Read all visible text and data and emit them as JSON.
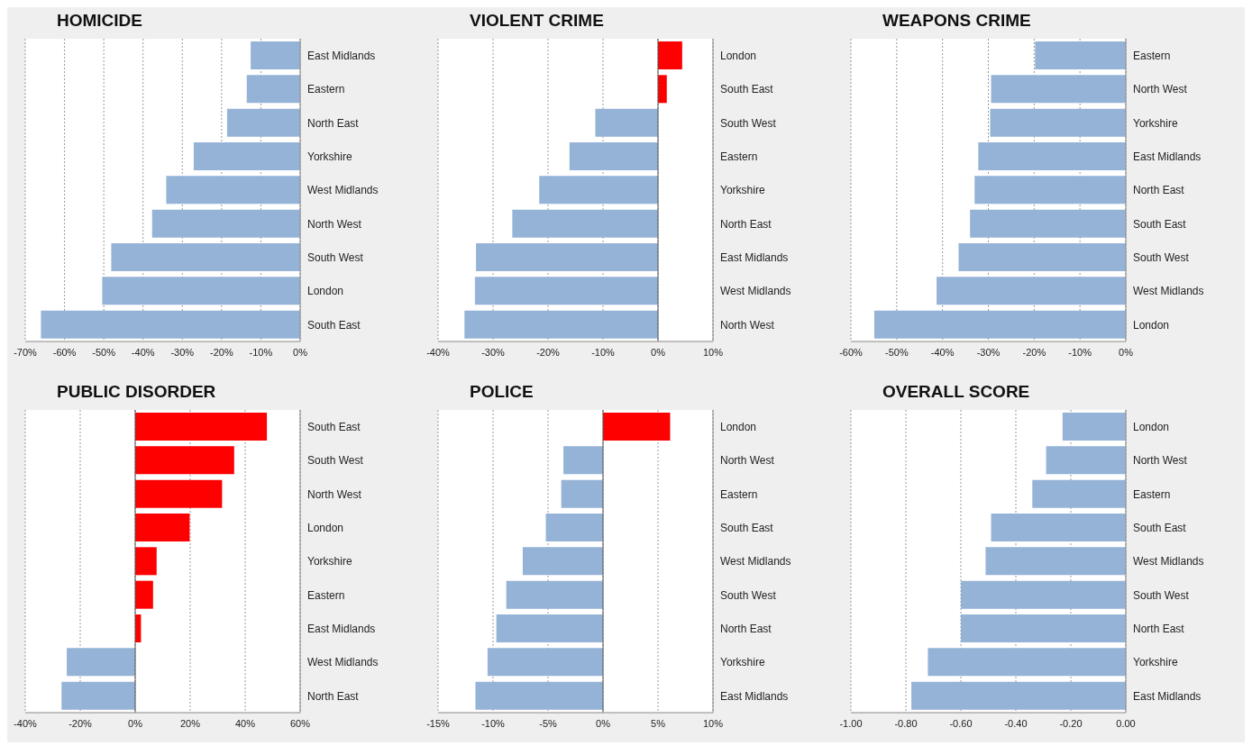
{
  "chart_data": [
    {
      "type": "bar",
      "orientation": "horizontal",
      "title": "HOMICIDE",
      "categories": [
        "East Midlands",
        "Eastern",
        "North East",
        "Yorkshire",
        "West Midlands",
        "North West",
        "South West",
        "London",
        "South East"
      ],
      "values": [
        -12.6,
        -13.6,
        -18.6,
        -27.1,
        -34.1,
        -37.7,
        -48.1,
        -50.4,
        -66.0
      ],
      "colors": [
        "#95b3d7",
        "#95b3d7",
        "#95b3d7",
        "#95b3d7",
        "#95b3d7",
        "#95b3d7",
        "#95b3d7",
        "#95b3d7",
        "#95b3d7"
      ],
      "xlim": [
        -70,
        0
      ],
      "xticks": [
        {
          "value": -70,
          "label": "-70%"
        },
        {
          "value": -60,
          "label": "-60%"
        },
        {
          "value": -50,
          "label": "-50%"
        },
        {
          "value": -40,
          "label": "-40%"
        },
        {
          "value": -30,
          "label": "-30%"
        },
        {
          "value": -20,
          "label": "-20%"
        },
        {
          "value": -10,
          "label": "-10%"
        },
        {
          "value": 0,
          "label": "0%"
        }
      ],
      "grid": "x"
    },
    {
      "type": "bar",
      "orientation": "horizontal",
      "title": "VIOLENT CRIME",
      "categories": [
        "London",
        "South East",
        "South West",
        "Eastern",
        "Yorkshire",
        "North East",
        "East Midlands",
        "West Midlands",
        "North West"
      ],
      "values": [
        4.4,
        1.6,
        -11.4,
        -16.1,
        -21.6,
        -26.5,
        -33.1,
        -33.3,
        -35.2
      ],
      "colors": [
        "#ff0000",
        "#ff0000",
        "#95b3d7",
        "#95b3d7",
        "#95b3d7",
        "#95b3d7",
        "#95b3d7",
        "#95b3d7",
        "#95b3d7"
      ],
      "xlim": [
        -40,
        10
      ],
      "xticks": [
        {
          "value": -40,
          "label": "-40%"
        },
        {
          "value": -30,
          "label": "-30%"
        },
        {
          "value": -20,
          "label": "-20%"
        },
        {
          "value": -10,
          "label": "-10%"
        },
        {
          "value": 0,
          "label": "0%"
        },
        {
          "value": 10,
          "label": "10%"
        }
      ],
      "grid": "x"
    },
    {
      "type": "bar",
      "orientation": "horizontal",
      "title": "WEAPONS CRIME",
      "categories": [
        "Eastern",
        "North West",
        "Yorkshire",
        "East Midlands",
        "North East",
        "South East",
        "South West",
        "West Midlands",
        "London"
      ],
      "values": [
        -19.8,
        -29.4,
        -29.6,
        -32.2,
        -33.0,
        -34.0,
        -36.5,
        -41.3,
        -54.9
      ],
      "colors": [
        "#95b3d7",
        "#95b3d7",
        "#95b3d7",
        "#95b3d7",
        "#95b3d7",
        "#95b3d7",
        "#95b3d7",
        "#95b3d7",
        "#95b3d7"
      ],
      "xlim": [
        -60,
        0
      ],
      "xticks": [
        {
          "value": -60,
          "label": "-60%"
        },
        {
          "value": -50,
          "label": "-50%"
        },
        {
          "value": -40,
          "label": "-40%"
        },
        {
          "value": -30,
          "label": "-30%"
        },
        {
          "value": -20,
          "label": "-20%"
        },
        {
          "value": -10,
          "label": "-10%"
        },
        {
          "value": 0,
          "label": "0%"
        }
      ],
      "grid": "x"
    },
    {
      "type": "bar",
      "orientation": "horizontal",
      "title": "PUBLIC DISORDER",
      "categories": [
        "South East",
        "South West",
        "North West",
        "London",
        "Yorkshire",
        "Eastern",
        "East Midlands",
        "West Midlands",
        "North East"
      ],
      "values": [
        47.9,
        36.0,
        31.6,
        19.8,
        7.8,
        6.5,
        2.1,
        -24.9,
        -26.8
      ],
      "colors": [
        "#ff0000",
        "#ff0000",
        "#ff0000",
        "#ff0000",
        "#ff0000",
        "#ff0000",
        "#ff0000",
        "#95b3d7",
        "#95b3d7"
      ],
      "xlim": [
        -40,
        60
      ],
      "xticks": [
        {
          "value": -40,
          "label": "-40%"
        },
        {
          "value": -20,
          "label": "-20%"
        },
        {
          "value": 0,
          "label": "0%"
        },
        {
          "value": 20,
          "label": "20%"
        },
        {
          "value": 40,
          "label": "40%"
        },
        {
          "value": 60,
          "label": "60%"
        }
      ],
      "grid": "x"
    },
    {
      "type": "bar",
      "orientation": "horizontal",
      "title": "POLICE",
      "categories": [
        "London",
        "North West",
        "Eastern",
        "South East",
        "West Midlands",
        "South West",
        "North East",
        "Yorkshire",
        "East Midlands"
      ],
      "values": [
        6.1,
        -3.6,
        -3.8,
        -5.2,
        -7.3,
        -8.8,
        -9.7,
        -10.5,
        -11.6
      ],
      "colors": [
        "#ff0000",
        "#95b3d7",
        "#95b3d7",
        "#95b3d7",
        "#95b3d7",
        "#95b3d7",
        "#95b3d7",
        "#95b3d7",
        "#95b3d7"
      ],
      "xlim": [
        -15,
        10
      ],
      "xticks": [
        {
          "value": -15,
          "label": "-15%"
        },
        {
          "value": -10,
          "label": "-10%"
        },
        {
          "value": -5,
          "label": "-5%"
        },
        {
          "value": 0,
          "label": "0%"
        },
        {
          "value": 5,
          "label": "5%"
        },
        {
          "value": 10,
          "label": "10%"
        }
      ],
      "grid": "x"
    },
    {
      "type": "bar",
      "orientation": "horizontal",
      "title": "OVERALL SCORE",
      "categories": [
        "London",
        "North West",
        "Eastern",
        "South East",
        "West Midlands",
        "South West",
        "North East",
        "Yorkshire",
        "East Midlands"
      ],
      "values": [
        -0.23,
        -0.29,
        -0.34,
        -0.49,
        -0.51,
        -0.6,
        -0.6,
        -0.72,
        -0.78
      ],
      "colors": [
        "#95b3d7",
        "#95b3d7",
        "#95b3d7",
        "#95b3d7",
        "#95b3d7",
        "#95b3d7",
        "#95b3d7",
        "#95b3d7",
        "#95b3d7"
      ],
      "xlim": [
        -1,
        0
      ],
      "xticks": [
        {
          "value": -1,
          "label": "-1.00"
        },
        {
          "value": -0.8,
          "label": "-0.80"
        },
        {
          "value": -0.6,
          "label": "-0.60"
        },
        {
          "value": -0.4,
          "label": "-0.40"
        },
        {
          "value": -0.2,
          "label": "-0.20"
        },
        {
          "value": 0,
          "label": "0.00"
        }
      ],
      "grid": "x"
    }
  ]
}
